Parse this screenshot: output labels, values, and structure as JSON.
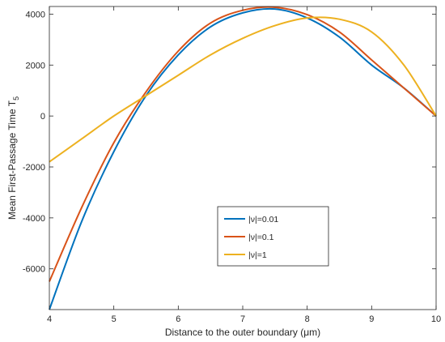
{
  "chart_data": {
    "type": "line",
    "title": "",
    "xlabel": "Distance to the outer boundary (μm)",
    "ylabel": "Mean First-Passage Time T5",
    "ylabel_main": "Mean First-Passage Time T",
    "ylabel_sub": "5",
    "xlim": [
      4,
      10
    ],
    "ylim": [
      -7600,
      4300
    ],
    "xticks": [
      4,
      5,
      6,
      7,
      8,
      9,
      10
    ],
    "yticks": [
      -6000,
      -4000,
      -2000,
      0,
      2000,
      4000
    ],
    "grid": false,
    "legend_position": "lower-right",
    "x": [
      4,
      4.5,
      5,
      5.5,
      6,
      6.5,
      7,
      7.5,
      8,
      8.5,
      9,
      9.5,
      10
    ],
    "series": [
      {
        "name": "|ν|=0.01",
        "color": "#0072BD",
        "values": [
          -7600,
          -4150,
          -1400,
          800,
          2400,
          3500,
          4050,
          4200,
          3850,
          3100,
          2000,
          1100,
          0
        ]
      },
      {
        "name": "|ν|=0.1",
        "color": "#D95319",
        "values": [
          -6500,
          -3600,
          -1050,
          950,
          2550,
          3650,
          4150,
          4270,
          3980,
          3300,
          2200,
          1100,
          0
        ]
      },
      {
        "name": "|ν|=1",
        "color": "#EDB120",
        "values": [
          -1800,
          -900,
          0,
          800,
          1600,
          2400,
          3050,
          3550,
          3850,
          3800,
          3300,
          2000,
          0
        ]
      }
    ]
  }
}
